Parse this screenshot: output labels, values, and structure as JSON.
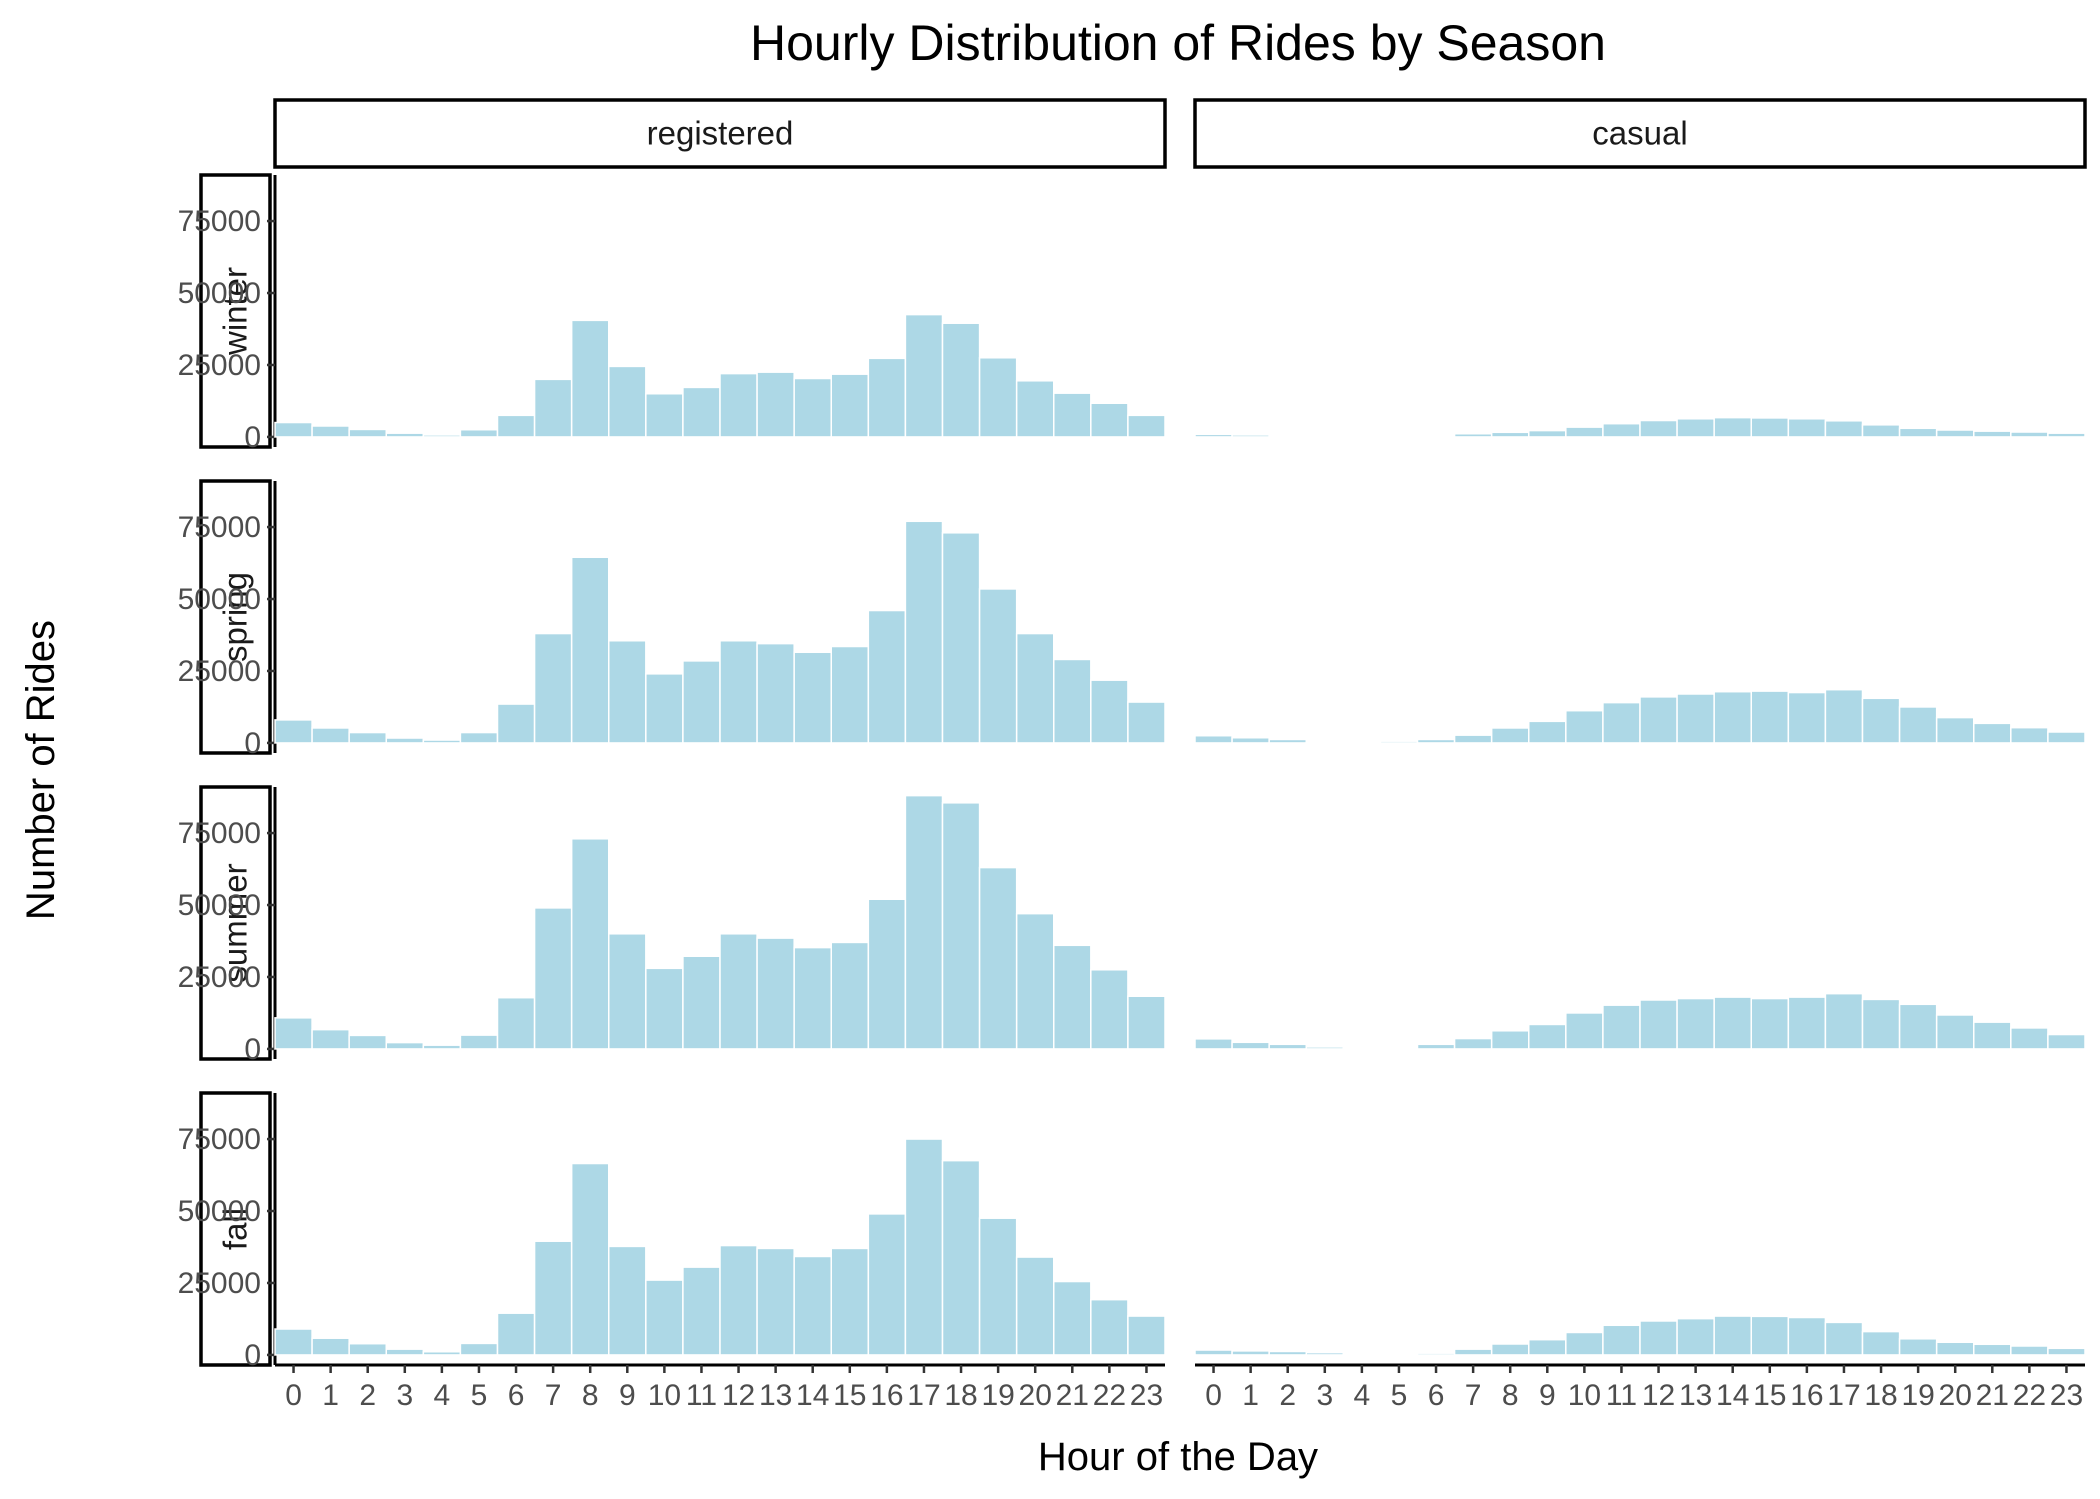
{
  "chart_data": {
    "type": "bar",
    "title": "Hourly Distribution of Rides by Season",
    "xlabel": "Hour of the Day",
    "ylabel": "Number of Rides",
    "x": [
      0,
      1,
      2,
      3,
      4,
      5,
      6,
      7,
      8,
      9,
      10,
      11,
      12,
      13,
      14,
      15,
      16,
      17,
      18,
      19,
      20,
      21,
      22,
      23
    ],
    "x_tick_labels": [
      "0",
      "1",
      "2",
      "3",
      "4",
      "5",
      "6",
      "7",
      "8",
      "9",
      "10",
      "11",
      "12",
      "13",
      "14",
      "15",
      "16",
      "17",
      "18",
      "19",
      "20",
      "21",
      "22",
      "23"
    ],
    "y_ticks": [
      0,
      25000,
      50000,
      75000
    ],
    "y_tick_labels": [
      "0",
      "25000",
      "50000",
      "75000"
    ],
    "ylim": [
      -3500,
      91000
    ],
    "bar_color": "#add8e6",
    "bar_edge_color": "#ffffff",
    "grid": false,
    "column_facets": [
      "registered",
      "casual"
    ],
    "row_facets": [
      "winter",
      "spring",
      "summer",
      "fall"
    ],
    "panels": [
      {
        "season": "winter",
        "rider_type": "registered",
        "values": [
          5000,
          3800,
          2600,
          1300,
          700,
          2500,
          7500,
          20000,
          40500,
          24500,
          15000,
          17200,
          22000,
          22500,
          20300,
          21800,
          27300,
          42500,
          39500,
          27500,
          19500,
          15200,
          11700,
          7500
        ]
      },
      {
        "season": "winter",
        "rider_type": "casual",
        "values": [
          900,
          700,
          500,
          300,
          200,
          100,
          400,
          1100,
          1600,
          2200,
          3400,
          4600,
          5700,
          6300,
          6700,
          6600,
          6300,
          5600,
          4200,
          3000,
          2400,
          2000,
          1700,
          1300
        ]
      },
      {
        "season": "spring",
        "rider_type": "registered",
        "values": [
          8000,
          5200,
          3600,
          1700,
          1000,
          3600,
          13500,
          38000,
          64500,
          35500,
          24000,
          28500,
          35500,
          34500,
          31500,
          33500,
          46000,
          77000,
          73000,
          53500,
          38000,
          29000,
          21800,
          14200
        ]
      },
      {
        "season": "spring",
        "rider_type": "casual",
        "values": [
          2500,
          1800,
          1200,
          500,
          300,
          600,
          1200,
          2700,
          5200,
          7500,
          11200,
          14000,
          16000,
          17000,
          17800,
          18000,
          17500,
          18500,
          15500,
          12500,
          8800,
          6800,
          5300,
          3800
        ]
      },
      {
        "season": "summer",
        "rider_type": "registered",
        "values": [
          10800,
          6700,
          4700,
          2200,
          1300,
          4800,
          17800,
          49000,
          73000,
          40000,
          28000,
          32200,
          40000,
          38500,
          35200,
          37000,
          52000,
          88000,
          85500,
          63000,
          47000,
          36000,
          27500,
          18300
        ]
      },
      {
        "season": "summer",
        "rider_type": "casual",
        "values": [
          3500,
          2300,
          1600,
          700,
          400,
          500,
          1600,
          3600,
          6300,
          8500,
          12500,
          15200,
          17000,
          17500,
          18000,
          17500,
          18000,
          19200,
          17200,
          15500,
          11800,
          9300,
          7300,
          5000
        ]
      },
      {
        "season": "fall",
        "rider_type": "registered",
        "values": [
          9000,
          5800,
          3900,
          2000,
          1100,
          4000,
          14500,
          39500,
          66500,
          37700,
          26000,
          30500,
          38000,
          37000,
          34200,
          37000,
          49000,
          75000,
          67500,
          47500,
          34000,
          25500,
          19200,
          13500
        ]
      },
      {
        "season": "fall",
        "rider_type": "casual",
        "values": [
          1700,
          1400,
          1200,
          800,
          300,
          200,
          600,
          2000,
          3800,
          5300,
          7800,
          10300,
          11800,
          12600,
          13500,
          13400,
          13000,
          11300,
          8100,
          5600,
          4400,
          3700,
          3100,
          2300
        ]
      }
    ]
  }
}
